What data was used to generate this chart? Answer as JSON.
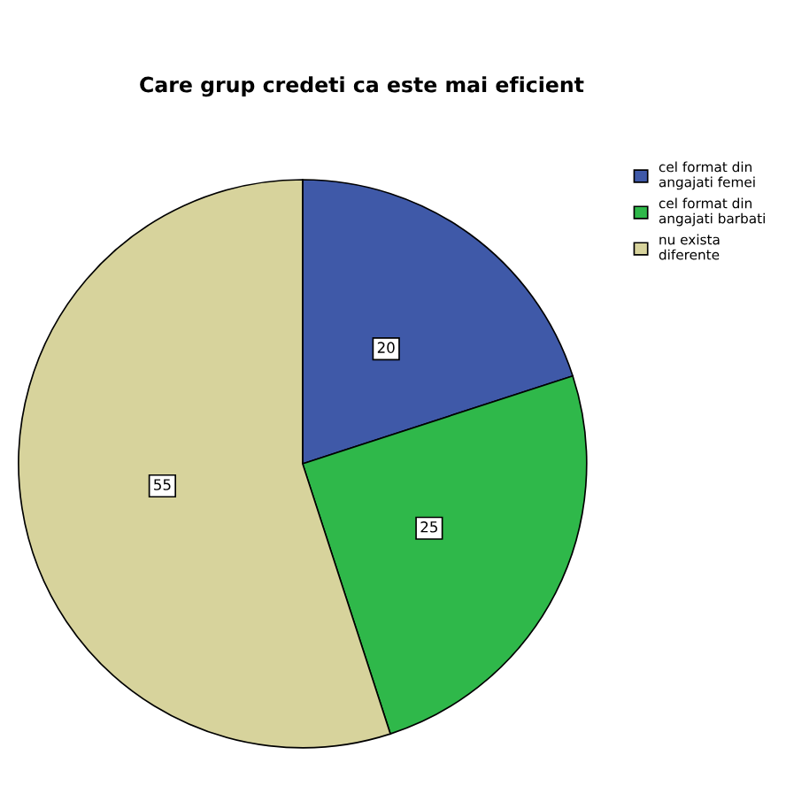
{
  "chart_data": {
    "type": "pie",
    "title": "Care grup credeti ca este mai eficient",
    "categories": [
      "cel format din angajati femei",
      "cel format din angajati barbati",
      "nu exista diferente"
    ],
    "values": [
      20,
      25,
      55
    ],
    "colors": [
      "#3f59a8",
      "#2fb84a",
      "#d7d39c"
    ],
    "data_labels": true,
    "legend": "top right"
  }
}
